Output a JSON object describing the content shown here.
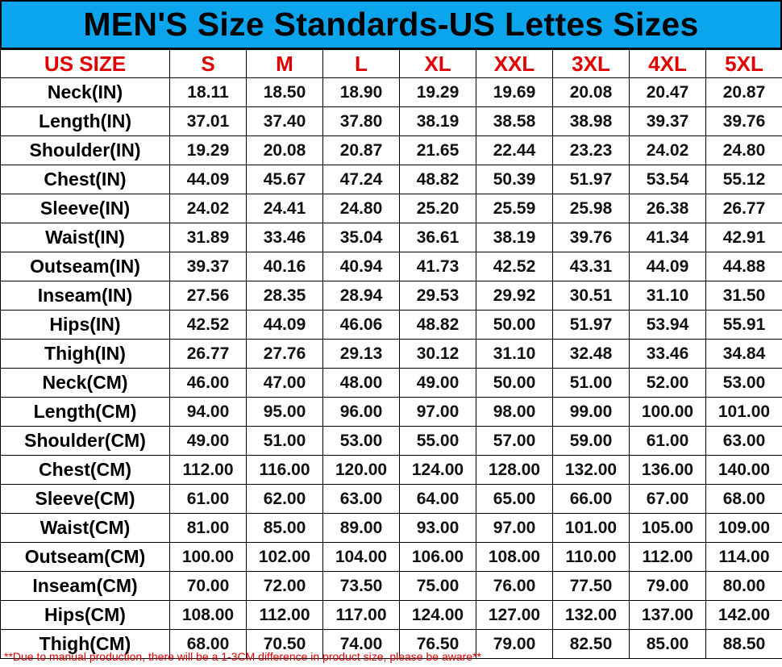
{
  "title": "MEN'S Size Standards-US Lettes Sizes",
  "colors": {
    "title_bg": "#0aa5ec",
    "header_text": "#e00000",
    "footnote_text": "#e00000"
  },
  "table": {
    "headers": [
      "US SIZE",
      "S",
      "M",
      "L",
      "XL",
      "XXL",
      "3XL",
      "4XL",
      "5XL"
    ],
    "rows": [
      [
        "Neck(IN)",
        "18.11",
        "18.50",
        "18.90",
        "19.29",
        "19.69",
        "20.08",
        "20.47",
        "20.87"
      ],
      [
        "Length(IN)",
        "37.01",
        "37.40",
        "37.80",
        "38.19",
        "38.58",
        "38.98",
        "39.37",
        "39.76"
      ],
      [
        "Shoulder(IN)",
        "19.29",
        "20.08",
        "20.87",
        "21.65",
        "22.44",
        "23.23",
        "24.02",
        "24.80"
      ],
      [
        "Chest(IN)",
        "44.09",
        "45.67",
        "47.24",
        "48.82",
        "50.39",
        "51.97",
        "53.54",
        "55.12"
      ],
      [
        "Sleeve(IN)",
        "24.02",
        "24.41",
        "24.80",
        "25.20",
        "25.59",
        "25.98",
        "26.38",
        "26.77"
      ],
      [
        "Waist(IN)",
        "31.89",
        "33.46",
        "35.04",
        "36.61",
        "38.19",
        "39.76",
        "41.34",
        "42.91"
      ],
      [
        "Outseam(IN)",
        "39.37",
        "40.16",
        "40.94",
        "41.73",
        "42.52",
        "43.31",
        "44.09",
        "44.88"
      ],
      [
        "Inseam(IN)",
        "27.56",
        "28.35",
        "28.94",
        "29.53",
        "29.92",
        "30.51",
        "31.10",
        "31.50"
      ],
      [
        "Hips(IN)",
        "42.52",
        "44.09",
        "46.06",
        "48.82",
        "50.00",
        "51.97",
        "53.94",
        "55.91"
      ],
      [
        "Thigh(IN)",
        "26.77",
        "27.76",
        "29.13",
        "30.12",
        "31.10",
        "32.48",
        "33.46",
        "34.84"
      ],
      [
        "Neck(CM)",
        "46.00",
        "47.00",
        "48.00",
        "49.00",
        "50.00",
        "51.00",
        "52.00",
        "53.00"
      ],
      [
        "Length(CM)",
        "94.00",
        "95.00",
        "96.00",
        "97.00",
        "98.00",
        "99.00",
        "100.00",
        "101.00"
      ],
      [
        "Shoulder(CM)",
        "49.00",
        "51.00",
        "53.00",
        "55.00",
        "57.00",
        "59.00",
        "61.00",
        "63.00"
      ],
      [
        "Chest(CM)",
        "112.00",
        "116.00",
        "120.00",
        "124.00",
        "128.00",
        "132.00",
        "136.00",
        "140.00"
      ],
      [
        "Sleeve(CM)",
        "61.00",
        "62.00",
        "63.00",
        "64.00",
        "65.00",
        "66.00",
        "67.00",
        "68.00"
      ],
      [
        "Waist(CM)",
        "81.00",
        "85.00",
        "89.00",
        "93.00",
        "97.00",
        "101.00",
        "105.00",
        "109.00"
      ],
      [
        "Outseam(CM)",
        "100.00",
        "102.00",
        "104.00",
        "106.00",
        "108.00",
        "110.00",
        "112.00",
        "114.00"
      ],
      [
        "Inseam(CM)",
        "70.00",
        "72.00",
        "73.50",
        "75.00",
        "76.00",
        "77.50",
        "79.00",
        "80.00"
      ],
      [
        "Hips(CM)",
        "108.00",
        "112.00",
        "117.00",
        "124.00",
        "127.00",
        "132.00",
        "137.00",
        "142.00"
      ],
      [
        "Thigh(CM)",
        "68.00",
        "70.50",
        "74.00",
        "76.50",
        "79.00",
        "82.50",
        "85.00",
        "88.50"
      ]
    ]
  },
  "footnote": "**Due to manual production, there will be a 1-3CM difference in product size, please be aware**"
}
